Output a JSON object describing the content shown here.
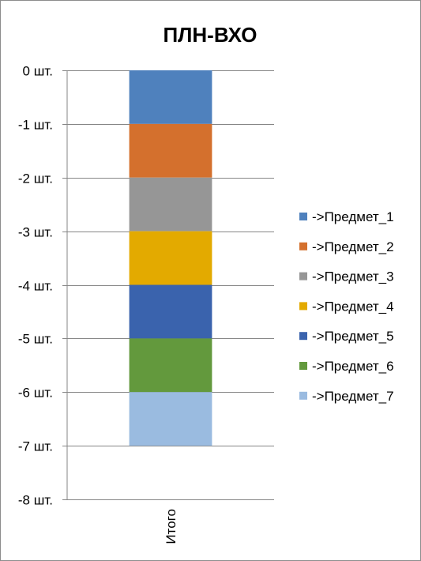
{
  "chart_data": {
    "type": "bar",
    "stacked": true,
    "title": "ПЛН-ВХО",
    "categories": [
      "Итого"
    ],
    "ylim": [
      -8,
      0
    ],
    "y_ticks": [
      0,
      -1,
      -2,
      -3,
      -4,
      -5,
      -6,
      -7,
      -8
    ],
    "y_tick_labels": [
      "0 шт.",
      "-1 шт.",
      "-2 шт.",
      "-3 шт.",
      "-4 шт.",
      "-5 шт.",
      "-6 шт.",
      "-7 шт.",
      "-8 шт."
    ],
    "grid": true,
    "legend_position": "right",
    "series": [
      {
        "name": "->Предмет_1",
        "values": [
          -1
        ],
        "color": "#4f81bd"
      },
      {
        "name": "->Предмет_2",
        "values": [
          -1
        ],
        "color": "#d4702d"
      },
      {
        "name": "->Предмет_3",
        "values": [
          -1
        ],
        "color": "#969696"
      },
      {
        "name": "->Предмет_4",
        "values": [
          -1
        ],
        "color": "#e3aa00"
      },
      {
        "name": "->Предмет_5",
        "values": [
          -1
        ],
        "color": "#3a63ad"
      },
      {
        "name": "->Предмет_6",
        "values": [
          -1
        ],
        "color": "#63993d"
      },
      {
        "name": "->Предмет_7",
        "values": [
          -1
        ],
        "color": "#9abbe0"
      }
    ]
  }
}
